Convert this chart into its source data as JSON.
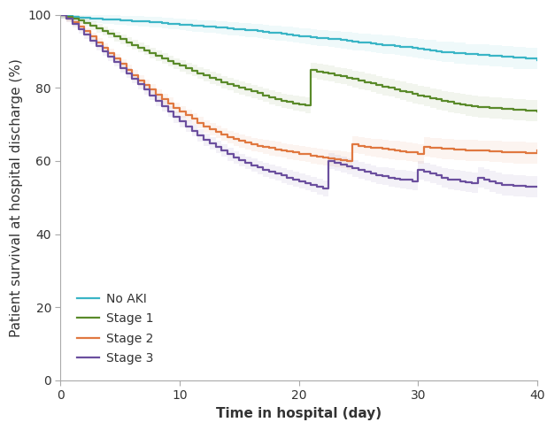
{
  "title": "",
  "xlabel": "Time in hospital (day)",
  "ylabel": "Patient survival at hospital discharge (%)",
  "xlim": [
    0,
    40
  ],
  "ylim": [
    0,
    100
  ],
  "xticks": [
    0,
    10,
    20,
    30,
    40
  ],
  "yticks": [
    0,
    20,
    40,
    60,
    80,
    100
  ],
  "background_color": "#ffffff",
  "curves": {
    "no_aki": {
      "label": "No AKI",
      "color": "#3ab5c6",
      "x": [
        0,
        0.5,
        1,
        1.5,
        2,
        2.5,
        3,
        3.5,
        4,
        4.5,
        5,
        5.5,
        6,
        6.5,
        7,
        7.5,
        8,
        8.5,
        9,
        9.5,
        10,
        10.5,
        11,
        11.5,
        12,
        12.5,
        13,
        13.5,
        14,
        14.5,
        15,
        15.5,
        16,
        16.5,
        17,
        17.5,
        18,
        18.5,
        19,
        19.5,
        20,
        20.5,
        21,
        21.5,
        22,
        22.5,
        23,
        23.5,
        24,
        24.5,
        25,
        25.5,
        26,
        26.5,
        27,
        27.5,
        28,
        28.5,
        29,
        29.5,
        30,
        30.5,
        31,
        31.5,
        32,
        33,
        34,
        35,
        36,
        37,
        38,
        39,
        40
      ],
      "y": [
        100,
        99.8,
        99.5,
        99.3,
        99.1,
        99.0,
        98.9,
        98.8,
        98.7,
        98.6,
        98.5,
        98.4,
        98.3,
        98.2,
        98.1,
        98.0,
        97.9,
        97.8,
        97.6,
        97.5,
        97.3,
        97.2,
        97.0,
        96.9,
        96.8,
        96.7,
        96.5,
        96.4,
        96.2,
        96.1,
        96.0,
        95.8,
        95.7,
        95.5,
        95.3,
        95.1,
        95.0,
        94.8,
        94.6,
        94.4,
        94.2,
        94.1,
        93.9,
        93.7,
        93.6,
        93.4,
        93.3,
        93.1,
        92.9,
        92.7,
        92.5,
        92.3,
        92.2,
        92.0,
        91.8,
        91.7,
        91.5,
        91.3,
        91.1,
        91.0,
        90.8,
        90.5,
        90.3,
        90.0,
        89.8,
        89.5,
        89.2,
        89.0,
        88.8,
        88.5,
        88.2,
        88.0,
        87.5
      ]
    },
    "stage1": {
      "label": "Stage 1",
      "color": "#5a8a2a",
      "x": [
        0,
        0.5,
        1,
        1.5,
        2,
        2.5,
        3,
        3.5,
        4,
        4.5,
        5,
        5.5,
        6,
        6.5,
        7,
        7.5,
        8,
        8.5,
        9,
        9.5,
        10,
        10.5,
        11,
        11.5,
        12,
        12.5,
        13,
        13.5,
        14,
        14.5,
        15,
        15.5,
        16,
        16.5,
        17,
        17.5,
        18,
        18.5,
        19,
        19.5,
        20,
        20.5,
        21,
        21.5,
        22,
        22.5,
        23,
        23.5,
        24,
        24.5,
        25,
        25.5,
        26,
        26.5,
        27,
        27.5,
        28,
        28.5,
        29,
        29.5,
        30,
        30.5,
        31,
        31.5,
        32,
        32.5,
        33,
        33.5,
        34,
        34.5,
        35,
        36,
        37,
        38,
        39,
        40
      ],
      "y": [
        100,
        99.5,
        99.0,
        98.5,
        97.8,
        97.0,
        96.3,
        95.5,
        94.8,
        94.0,
        93.3,
        92.5,
        91.8,
        91.0,
        90.3,
        89.5,
        88.8,
        88.0,
        87.3,
        86.6,
        86.0,
        85.3,
        84.7,
        84.0,
        83.4,
        82.8,
        82.2,
        81.6,
        81.0,
        80.5,
        80.0,
        79.5,
        79.0,
        78.5,
        78.0,
        77.5,
        77.0,
        76.5,
        76.2,
        75.8,
        75.5,
        75.2,
        84.8,
        84.5,
        84.2,
        83.9,
        83.5,
        83.2,
        82.8,
        82.4,
        82.0,
        81.6,
        81.2,
        80.8,
        80.4,
        80.0,
        79.6,
        79.2,
        78.8,
        78.4,
        78.0,
        77.6,
        77.2,
        76.8,
        76.4,
        76.1,
        75.8,
        75.5,
        75.2,
        75.0,
        74.8,
        74.5,
        74.2,
        74.0,
        73.8,
        73.5
      ]
    },
    "stage2": {
      "label": "Stage 2",
      "color": "#e07840",
      "x": [
        0,
        0.5,
        1,
        1.5,
        2,
        2.5,
        3,
        3.5,
        4,
        4.5,
        5,
        5.5,
        6,
        6.5,
        7,
        7.5,
        8,
        8.5,
        9,
        9.5,
        10,
        10.5,
        11,
        11.5,
        12,
        12.5,
        13,
        13.5,
        14,
        14.5,
        15,
        15.5,
        16,
        16.5,
        17,
        17.5,
        18,
        18.5,
        19,
        19.5,
        20,
        20.5,
        21,
        21.5,
        22,
        22.5,
        23,
        23.5,
        24,
        24.5,
        25,
        25.5,
        26,
        26.5,
        27,
        27.5,
        28,
        28.5,
        29,
        29.5,
        30,
        30.5,
        31,
        31.5,
        32,
        33,
        34,
        35,
        36,
        37,
        38,
        39,
        40
      ],
      "y": [
        100,
        99.0,
        98.0,
        96.8,
        95.5,
        94.0,
        92.5,
        91.0,
        89.5,
        88.0,
        86.5,
        85.0,
        83.5,
        82.0,
        80.8,
        79.5,
        78.2,
        77.0,
        75.8,
        74.5,
        73.5,
        72.5,
        71.5,
        70.5,
        69.5,
        68.8,
        68.0,
        67.3,
        66.5,
        66.0,
        65.5,
        65.0,
        64.5,
        64.2,
        63.8,
        63.5,
        63.2,
        62.9,
        62.6,
        62.3,
        62.0,
        61.8,
        61.5,
        61.2,
        61.0,
        60.7,
        60.5,
        60.3,
        60.0,
        64.5,
        64.2,
        63.9,
        63.7,
        63.5,
        63.3,
        63.1,
        62.9,
        62.7,
        62.5,
        62.3,
        62.0,
        63.8,
        63.6,
        63.5,
        63.3,
        63.1,
        62.9,
        62.8,
        62.6,
        62.5,
        62.3,
        62.2,
        63.0
      ]
    },
    "stage3": {
      "label": "Stage 3",
      "color": "#6b4f9e",
      "x": [
        0,
        0.5,
        1,
        1.5,
        2,
        2.5,
        3,
        3.5,
        4,
        4.5,
        5,
        5.5,
        6,
        6.5,
        7,
        7.5,
        8,
        8.5,
        9,
        9.5,
        10,
        10.5,
        11,
        11.5,
        12,
        12.5,
        13,
        13.5,
        14,
        14.5,
        15,
        15.5,
        16,
        16.5,
        17,
        17.5,
        18,
        18.5,
        19,
        19.5,
        20,
        20.5,
        21,
        21.5,
        22,
        22.5,
        23,
        23.5,
        24,
        24.5,
        25,
        25.5,
        26,
        26.5,
        27,
        27.5,
        28,
        28.5,
        29,
        29.5,
        30,
        30.5,
        31,
        31.5,
        32,
        32.5,
        33,
        33.5,
        34,
        34.5,
        35,
        35.5,
        36,
        36.5,
        37,
        38,
        39,
        40
      ],
      "y": [
        100,
        99.0,
        97.5,
        96.0,
        94.5,
        93.0,
        91.5,
        90.0,
        88.5,
        87.0,
        85.5,
        84.0,
        82.5,
        81.0,
        79.5,
        78.0,
        76.5,
        75.0,
        73.5,
        72.0,
        70.8,
        69.5,
        68.3,
        67.0,
        65.8,
        64.8,
        63.8,
        62.8,
        61.8,
        61.0,
        60.2,
        59.5,
        58.8,
        58.2,
        57.5,
        57.0,
        56.5,
        56.0,
        55.5,
        55.0,
        54.5,
        54.0,
        53.5,
        53.0,
        52.5,
        60.0,
        59.5,
        59.0,
        58.5,
        58.0,
        57.5,
        57.0,
        56.5,
        56.0,
        55.8,
        55.5,
        55.2,
        55.0,
        54.8,
        54.5,
        57.5,
        57.0,
        56.5,
        56.0,
        55.5,
        55.0,
        54.8,
        54.5,
        54.2,
        54.0,
        55.5,
        55.0,
        54.5,
        54.0,
        53.5,
        53.2,
        53.0,
        53.0
      ]
    }
  },
  "ci_alpha": 0.08,
  "line_width": 1.6,
  "legend_loc": "lower left",
  "legend_fontsize": 10,
  "axis_fontsize": 11,
  "tick_fontsize": 10,
  "spine_color": "#aaaaaa",
  "text_color": "#333333"
}
